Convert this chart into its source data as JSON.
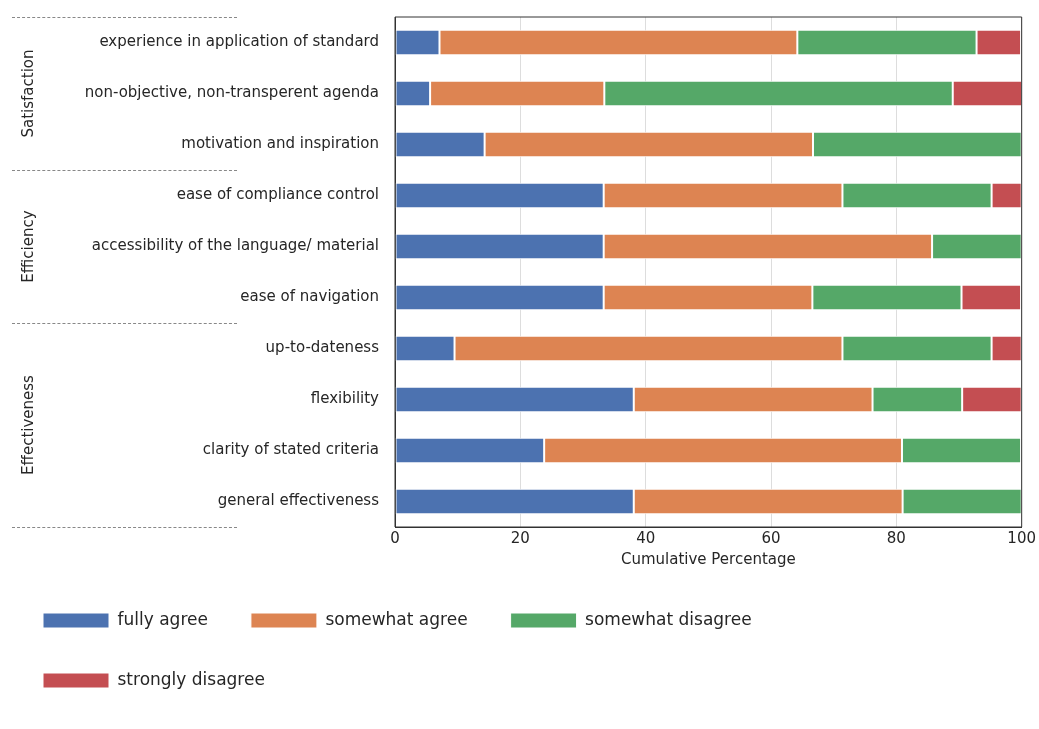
{
  "chart_data": {
    "type": "bar",
    "orientation": "horizontal",
    "stacked": true,
    "xlabel": "Cumulative Percentage",
    "categories": [
      "experience in application of standard",
      "non-objective, non-transperent agenda",
      "motivation and inspiration",
      "ease of compliance control",
      "accessibility of the language/ material",
      "ease of navigation",
      "up-to-dateness",
      "flexibility",
      "clarity of stated criteria",
      "general effectiveness"
    ],
    "series": [
      {
        "name": "fully agree",
        "color": "#4c72b0",
        "values": [
          7.1,
          5.6,
          14.3,
          33.3,
          33.3,
          33.3,
          9.5,
          38.1,
          23.8,
          38.1
        ]
      },
      {
        "name": "somewhat agree",
        "color": "#dd8452",
        "values": [
          57.1,
          27.8,
          52.4,
          38.1,
          52.4,
          33.3,
          61.9,
          38.1,
          57.1,
          42.9
        ]
      },
      {
        "name": "somewhat disagree",
        "color": "#55a868",
        "values": [
          28.6,
          55.6,
          33.3,
          23.8,
          14.3,
          23.8,
          23.8,
          14.3,
          19.0,
          19.0
        ]
      },
      {
        "name": "strongly disagree",
        "color": "#c44e52",
        "values": [
          7.1,
          11.1,
          0,
          4.8,
          0,
          9.5,
          4.8,
          9.5,
          0,
          0
        ]
      }
    ],
    "xlim": [
      0,
      100
    ],
    "xticks": [
      0,
      20,
      40,
      60,
      80,
      100
    ],
    "grid": "x",
    "legend": "bottom",
    "annotations": [
      "Satisfaction",
      "Efficiency",
      "Effectiveness"
    ]
  }
}
